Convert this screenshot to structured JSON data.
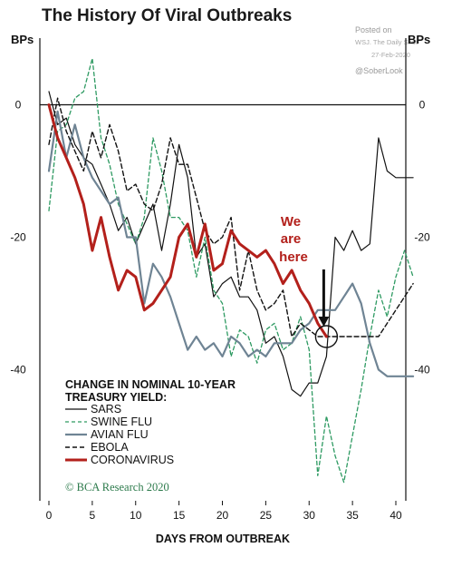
{
  "watermark": {
    "posted_on": "Posted on",
    "source": "WSJ. The Daily Shot",
    "date": "27-Feb-2020",
    "handle": "@SoberLook"
  },
  "chart_data": {
    "type": "line",
    "title": "The History Of Viral Outbreaks",
    "ylabel_left": "BPs",
    "ylabel_right": "BPs",
    "xlabel": "DAYS FROM OUTBREAK",
    "xlim": [
      -1,
      43
    ],
    "ylim": [
      -60,
      10
    ],
    "xticks": [
      0,
      5,
      10,
      15,
      20,
      25,
      30,
      35,
      40
    ],
    "yticks": [
      0,
      -20,
      -40
    ],
    "zero_line": true,
    "grid": false,
    "legend": {
      "position": "bottom-left",
      "heading": [
        "CHANGE IN NOMINAL 10-YEAR",
        "TREASURY YIELD:"
      ]
    },
    "annotation": {
      "text": [
        "We",
        "are",
        "here"
      ],
      "point": [
        32,
        -35
      ]
    },
    "credit": "© BCA Research 2020",
    "series": [
      {
        "name": "SARS",
        "color": "#111111",
        "dash": "solid",
        "width": 1.2,
        "x": [
          0,
          1,
          2,
          3,
          4,
          5,
          6,
          7,
          8,
          9,
          10,
          11,
          12,
          13,
          14,
          15,
          16,
          17,
          18,
          19,
          20,
          21,
          22,
          23,
          24,
          25,
          26,
          27,
          28,
          29,
          30,
          31,
          32,
          33,
          34,
          35,
          36,
          37,
          38,
          39,
          40,
          41,
          42
        ],
        "values": [
          2,
          -3,
          -2,
          -6,
          -8,
          -9,
          -12,
          -15,
          -19,
          -17,
          -21,
          -18,
          -15,
          -22,
          -15,
          -6,
          -11,
          -23,
          -21,
          -29,
          -27,
          -26,
          -29,
          -29,
          -31,
          -36,
          -35,
          -38,
          -43,
          -44,
          -42,
          -42,
          -38,
          -20,
          -22,
          -19,
          -22,
          -21,
          -5,
          -10,
          -11,
          -11,
          -11
        ]
      },
      {
        "name": "SWINE FLU",
        "color": "#2e9a62",
        "dash": "4,3",
        "width": 1.3,
        "x": [
          0,
          1,
          2,
          3,
          4,
          5,
          6,
          7,
          8,
          9,
          10,
          11,
          12,
          13,
          14,
          15,
          16,
          17,
          18,
          19,
          20,
          21,
          22,
          23,
          24,
          25,
          26,
          27,
          28,
          29,
          30,
          31,
          32,
          33,
          34,
          35,
          36,
          37,
          38,
          39,
          40,
          41,
          42
        ],
        "values": [
          -16,
          -4,
          -3,
          1,
          2,
          7,
          -5,
          -9,
          -15,
          -18,
          -21,
          -17,
          -5,
          -10,
          -17,
          -17,
          -19,
          -26,
          -20,
          -28,
          -30,
          -38,
          -34,
          -35,
          -39,
          -34,
          -33,
          -37,
          -36,
          -32,
          -37,
          -56,
          -47,
          -53,
          -57,
          -50,
          -43,
          -35,
          -28,
          -32,
          -26,
          -22,
          -26
        ]
      },
      {
        "name": "AVIAN FLU",
        "color": "#6f8494",
        "dash": "solid",
        "width": 2.2,
        "x": [
          0,
          1,
          2,
          3,
          4,
          5,
          6,
          7,
          8,
          9,
          10,
          11,
          12,
          13,
          14,
          15,
          16,
          17,
          18,
          19,
          20,
          21,
          22,
          23,
          24,
          25,
          26,
          27,
          28,
          29,
          30,
          31,
          32,
          33,
          34,
          35,
          36,
          37,
          38,
          39,
          40,
          41,
          42
        ],
        "values": [
          -10,
          -1,
          -8,
          -3,
          -8,
          -11,
          -13,
          -15,
          -14,
          -20,
          -20,
          -30,
          -24,
          -26,
          -29,
          -33,
          -37,
          -35,
          -37,
          -36,
          -38,
          -35,
          -36,
          -38,
          -37,
          -38,
          -36,
          -36,
          -36,
          -34,
          -33,
          -31,
          -31,
          -31,
          -29,
          -27,
          -30,
          -36,
          -40,
          -41,
          -41,
          -41,
          -41
        ]
      },
      {
        "name": "EBOLA",
        "color": "#111111",
        "dash": "5,3",
        "width": 1.4,
        "x": [
          0,
          1,
          2,
          3,
          4,
          5,
          6,
          7,
          8,
          9,
          10,
          11,
          12,
          13,
          14,
          15,
          16,
          17,
          18,
          19,
          20,
          21,
          22,
          23,
          24,
          25,
          26,
          27,
          28,
          29,
          30,
          31,
          32,
          33,
          34,
          35,
          36,
          37,
          38,
          39,
          40,
          41,
          42
        ],
        "values": [
          -6,
          1,
          -4,
          -7,
          -10,
          -4,
          -8,
          -3,
          -7,
          -13,
          -12,
          -15,
          -16,
          -12,
          -5,
          -9,
          -9,
          -14,
          -19,
          -21,
          -20,
          -17,
          -28,
          -22,
          -28,
          -31,
          -30,
          -28,
          -35,
          -33,
          -34,
          -35,
          -35,
          -35,
          -35,
          -35,
          -35,
          -35,
          -35,
          -33,
          -31,
          -29,
          -27
        ]
      },
      {
        "name": "CORONAVIRUS",
        "color": "#b3201b",
        "dash": "solid",
        "width": 3,
        "x": [
          0,
          1,
          2,
          3,
          4,
          5,
          6,
          7,
          8,
          9,
          10,
          11,
          12,
          13,
          14,
          15,
          16,
          17,
          18,
          19,
          20,
          21,
          22,
          23,
          24,
          25,
          26,
          27,
          28,
          29,
          30,
          31,
          32
        ],
        "values": [
          0,
          -5,
          -8,
          -11,
          -15,
          -22,
          -17,
          -23,
          -28,
          -25,
          -26,
          -31,
          -30,
          -28,
          -26,
          -20,
          -18,
          -23,
          -18,
          -25,
          -24,
          -19,
          -21,
          -22,
          -23,
          -22,
          -24,
          -27,
          -25,
          -28,
          -30,
          -33,
          -35
        ]
      }
    ]
  }
}
